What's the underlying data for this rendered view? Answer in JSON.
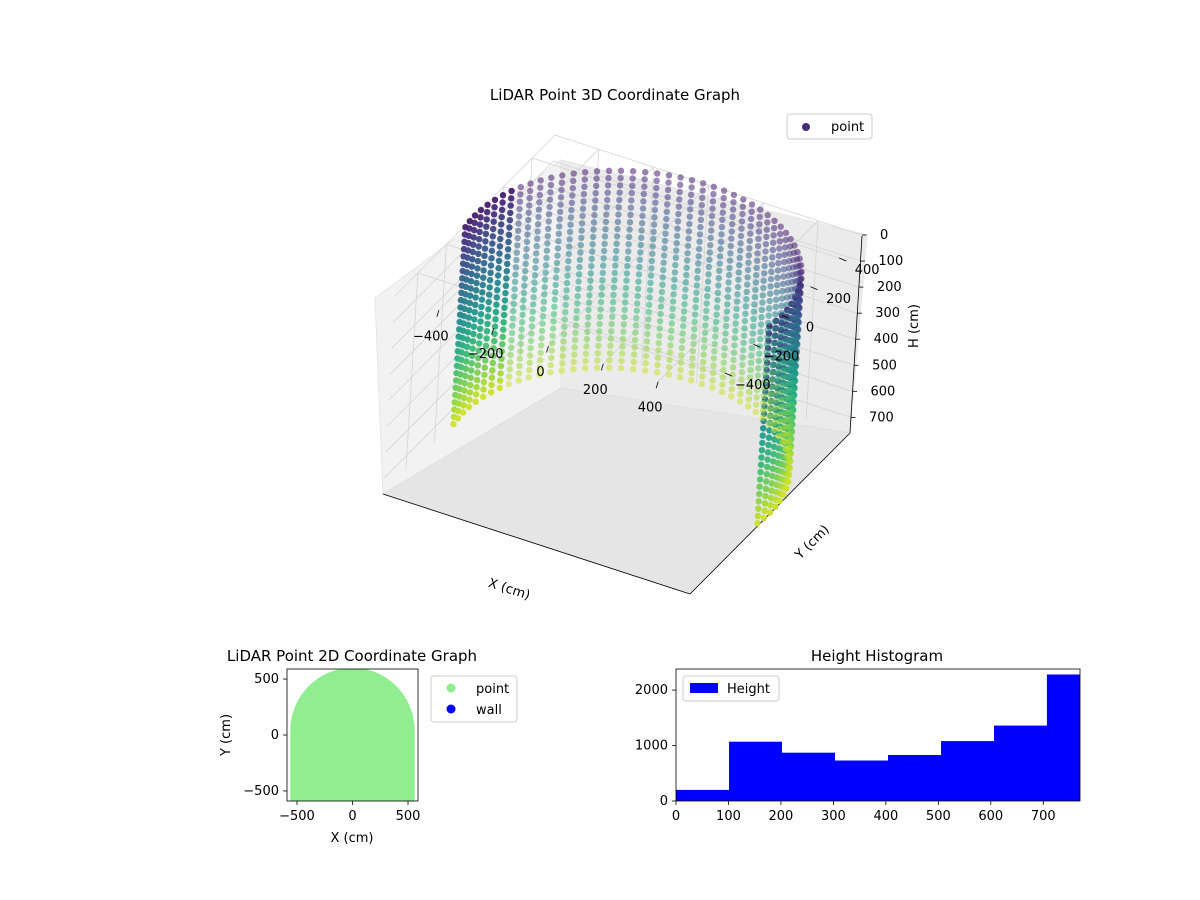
{
  "chart_data": [
    {
      "type": "scatter",
      "title": "LiDAR Point 3D Coordinate Graph",
      "xlabel": "X (cm)",
      "ylabel": "Y (cm)",
      "zlabel": "H (cm)",
      "x_ticks": [
        -400,
        -200,
        0,
        200,
        400
      ],
      "x_tick_labels": [
        "−400",
        "−200",
        "0",
        "200",
        "400"
      ],
      "y_ticks": [
        400,
        200,
        0,
        -200,
        -400
      ],
      "y_tick_labels": [
        "400",
        "200",
        "0",
        "−200",
        "−400"
      ],
      "z_ticks": [
        0,
        100,
        200,
        300,
        400,
        500,
        600,
        700
      ],
      "z_tick_labels": [
        "0",
        "100",
        "200",
        "300",
        "400",
        "500",
        "600",
        "700"
      ],
      "xlim": [
        -560,
        560
      ],
      "ylim": [
        -560,
        560
      ],
      "zlim": [
        0,
        760
      ],
      "z_inverted": true,
      "colormap": "viridis",
      "legend": [
        {
          "name": "point",
          "color": "#472d7b"
        }
      ],
      "legend_position": "top-right",
      "grid": true,
      "shape": "half-cylinder wall of radius ~560 cm, heights 0-760 cm, color by height",
      "wall": {
        "radius": 560,
        "h_min": 0,
        "h_max": 760
      }
    },
    {
      "type": "scatter",
      "title": "LiDAR Point 2D Coordinate Graph",
      "xlabel": "X (cm)",
      "ylabel": "Y (cm)",
      "x_ticks": [
        -500,
        0,
        500
      ],
      "x_tick_labels": [
        "−500",
        "0",
        "500"
      ],
      "y_ticks": [
        500,
        0,
        -500
      ],
      "y_tick_labels": [
        "500",
        "0",
        "−500"
      ],
      "xlim": [
        -590,
        590
      ],
      "ylim": [
        -590,
        590
      ],
      "legend": [
        {
          "name": "point",
          "color": "#90ee90"
        },
        {
          "name": "wall",
          "color": "#0000ff"
        }
      ],
      "legend_position": "outside-right",
      "grid": false
    },
    {
      "type": "bar",
      "title": "Height Histogram",
      "xlabel": "",
      "ylabel": "",
      "x_ticks": [
        0,
        100,
        200,
        300,
        400,
        500,
        600,
        700
      ],
      "x_tick_labels": [
        "0",
        "100",
        "200",
        "300",
        "400",
        "500",
        "600",
        "700"
      ],
      "y_ticks": [
        0,
        1000,
        2000
      ],
      "y_tick_labels": [
        "0",
        "1000",
        "2000"
      ],
      "xlim": [
        0,
        770
      ],
      "ylim": [
        0,
        2380
      ],
      "bin_edges": [
        0,
        101,
        202,
        303,
        404,
        505,
        606,
        707,
        770
      ],
      "values": [
        200,
        1070,
        870,
        730,
        830,
        1080,
        1360,
        2280
      ],
      "series": [
        {
          "name": "Height",
          "color": "#0000ff"
        }
      ],
      "legend_position": "top-left",
      "grid": false
    }
  ]
}
